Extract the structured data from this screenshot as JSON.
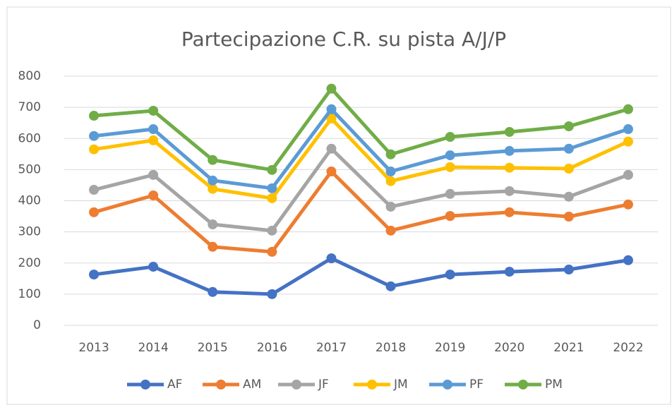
{
  "chart_data": {
    "type": "line",
    "title": "Partecipazione C.R. su pista A/J/P",
    "categories": [
      "2013",
      "2014",
      "2015",
      "2016",
      "2017",
      "2018",
      "2019",
      "2020",
      "2021",
      "2022"
    ],
    "series": [
      {
        "name": "AF",
        "color": "#4472c4",
        "values": [
          163,
          188,
          107,
          100,
          215,
          125,
          163,
          172,
          179,
          209
        ]
      },
      {
        "name": "AM",
        "color": "#ed7d31",
        "values": [
          363,
          417,
          252,
          236,
          494,
          304,
          351,
          363,
          349,
          388
        ]
      },
      {
        "name": "JF",
        "color": "#a5a5a5",
        "values": [
          435,
          483,
          324,
          304,
          567,
          381,
          422,
          431,
          413,
          483
        ]
      },
      {
        "name": "JM",
        "color": "#ffc000",
        "values": [
          565,
          594,
          438,
          408,
          664,
          463,
          508,
          506,
          503,
          590
        ]
      },
      {
        "name": "PF",
        "color": "#5b9bd5",
        "values": [
          608,
          630,
          465,
          440,
          694,
          494,
          546,
          560,
          567,
          630
        ]
      },
      {
        "name": "PM",
        "color": "#70ad47",
        "values": [
          673,
          689,
          531,
          499,
          760,
          549,
          605,
          621,
          639,
          694
        ]
      }
    ],
    "ylim": [
      0,
      800
    ],
    "yticks": [
      0,
      100,
      200,
      300,
      400,
      500,
      600,
      700,
      800
    ],
    "grid": true,
    "legend": "bottom"
  }
}
